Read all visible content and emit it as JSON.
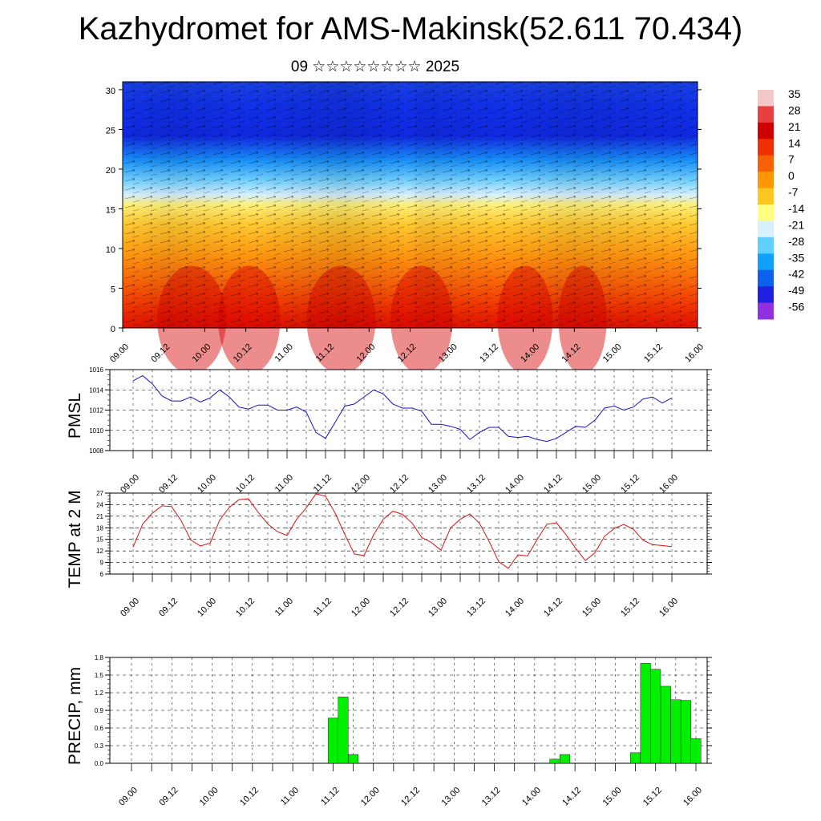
{
  "header": {
    "title": "Kazhydromet for AMS-Makinsk(52.611 70.434)",
    "subtitle": "09 ☆☆☆☆☆☆☆☆ 2025"
  },
  "time_labels": [
    "09.00",
    "09.12",
    "10.00",
    "10.12",
    "11.00",
    "11.12",
    "12.00",
    "12.12",
    "13.00",
    "13.12",
    "14.00",
    "14.12",
    "15.00",
    "15.12",
    "16.00"
  ],
  "colors": {
    "pmsl_line": "#1414c8",
    "temp_line": "#e01010",
    "precip_bar": "#00f000",
    "frame": "#000000"
  },
  "chart_data": [
    {
      "type": "heatmap",
      "name": "cross-section",
      "xlabels": [
        "09.00",
        "09.12",
        "10.00",
        "10.12",
        "11.00",
        "11.12",
        "12.00",
        "12.12",
        "13.00",
        "13.12",
        "14.00",
        "14.12",
        "15.00",
        "15.12",
        "16.00"
      ],
      "ylim": [
        0,
        31
      ],
      "yticks": [
        0,
        5,
        10,
        15,
        20,
        25,
        30
      ],
      "colorbar": {
        "labels": [
          "35",
          "28",
          "21",
          "14",
          "7",
          "0",
          "-7",
          "-14",
          "-21",
          "-28",
          "-35",
          "-42",
          "-49",
          "-56"
        ],
        "colors": [
          "#f4c8c8",
          "#e84040",
          "#d00000",
          "#f03000",
          "#f86000",
          "#ff9800",
          "#ffc820",
          "#ffff80",
          "#d8f0ff",
          "#60d0ff",
          "#10a0ff",
          "#1060f0",
          "#2020e0",
          "#9030e0"
        ]
      }
    },
    {
      "type": "line",
      "name": "PMSL",
      "ylabel": "PMSL",
      "ylim": [
        1008,
        1016
      ],
      "yticks": [
        1008,
        1010,
        1012,
        1014,
        1016
      ],
      "x_step_hours": 3,
      "values": [
        1014.9,
        1015.4,
        1014.6,
        1013.4,
        1012.9,
        1012.9,
        1013.3,
        1012.8,
        1013.2,
        1014.0,
        1013.3,
        1012.3,
        1012.1,
        1012.5,
        1012.5,
        1012.0,
        1012.0,
        1012.3,
        1011.8,
        1009.8,
        1009.2,
        1010.8,
        1012.4,
        1012.6,
        1013.3,
        1014.0,
        1013.6,
        1012.6,
        1012.2,
        1012.2,
        1011.9,
        1010.6,
        1010.6,
        1010.4,
        1010.1,
        1009.1,
        1009.8,
        1010.3,
        1010.3,
        1009.4,
        1009.3,
        1009.4,
        1009.1,
        1008.9,
        1009.2,
        1009.8,
        1010.4,
        1010.3,
        1011.0,
        1012.2,
        1012.4,
        1012.0,
        1012.3,
        1013.1,
        1013.3,
        1012.7,
        1013.2
      ]
    },
    {
      "type": "line",
      "name": "TEMP at 2 M",
      "ylabel": "TEMP at 2 M",
      "ylim": [
        6,
        27
      ],
      "yticks": [
        6,
        9,
        12,
        15,
        18,
        21,
        24,
        27
      ],
      "x_step_hours": 3,
      "values": [
        13.0,
        19.0,
        21.8,
        23.7,
        23.5,
        19.8,
        14.8,
        13.3,
        14.0,
        20.0,
        23.3,
        25.3,
        25.5,
        22.0,
        19.0,
        17.0,
        16.0,
        20.2,
        23.2,
        26.8,
        26.2,
        21.8,
        16.3,
        11.2,
        10.8,
        16.2,
        20.2,
        22.3,
        21.5,
        19.2,
        15.5,
        14.2,
        12.2,
        18.0,
        20.2,
        21.6,
        19.2,
        14.5,
        9.2,
        7.5,
        11.0,
        10.7,
        15.0,
        18.9,
        19.3,
        16.2,
        12.7,
        9.5,
        11.5,
        15.8,
        17.8,
        18.9,
        17.6,
        14.8,
        13.6,
        13.4,
        13.1
      ]
    },
    {
      "type": "bar",
      "name": "PRECIP",
      "ylabel": "PRECIP, mm",
      "ylim": [
        0,
        1.8
      ],
      "yticks": [
        "0.0",
        "0.3",
        "0.6",
        "0.9",
        "1.2",
        "1.5",
        "1.8"
      ],
      "x_step_hours": 3,
      "values": [
        0,
        0,
        0,
        0,
        0,
        0,
        0,
        0,
        0,
        0,
        0,
        0,
        0,
        0,
        0,
        0,
        0,
        0,
        0,
        0,
        0.77,
        1.13,
        0.15,
        0,
        0,
        0,
        0,
        0,
        0,
        0,
        0,
        0,
        0,
        0,
        0,
        0,
        0,
        0,
        0,
        0,
        0,
        0,
        0.07,
        0.15,
        0,
        0,
        0,
        0,
        0,
        0,
        0.18,
        1.7,
        1.6,
        1.31,
        1.08,
        1.07,
        0.42
      ]
    }
  ]
}
